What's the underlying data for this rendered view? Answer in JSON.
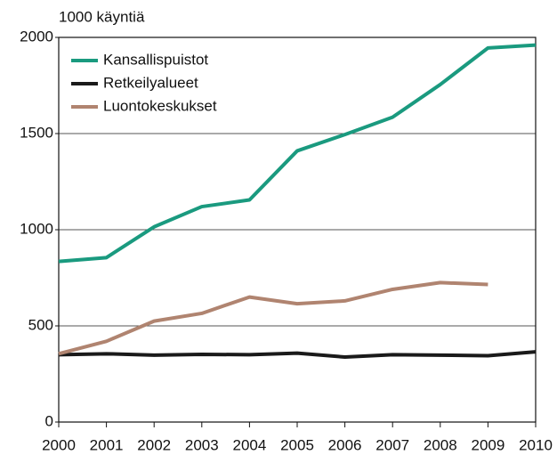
{
  "chart_data": {
    "type": "line",
    "y_label": "1000 käyntiä",
    "x": [
      2000,
      2001,
      2002,
      2003,
      2004,
      2005,
      2006,
      2007,
      2008,
      2009,
      2010
    ],
    "series": [
      {
        "name": "Kansallispuistot",
        "color": "#1a9a7f",
        "values": [
          835,
          855,
          1015,
          1120,
          1155,
          1410,
          1495,
          1585,
          1755,
          1945,
          1960
        ]
      },
      {
        "name": "Retkeilyalueet",
        "color": "#1a1a1a",
        "values": [
          350,
          355,
          348,
          352,
          350,
          358,
          338,
          350,
          348,
          345,
          365
        ]
      },
      {
        "name": "Luontokeskukset",
        "color": "#b08470",
        "values": [
          355,
          420,
          525,
          565,
          650,
          615,
          630,
          690,
          725,
          715,
          null
        ]
      }
    ],
    "xlim": [
      2000,
      2010
    ],
    "xticks": [
      2000,
      2001,
      2002,
      2003,
      2004,
      2005,
      2006,
      2007,
      2008,
      2009,
      2010
    ],
    "ylim": [
      0,
      2000
    ],
    "yticks": [
      0,
      500,
      1000,
      1500,
      2000
    ],
    "grid": true,
    "legend": "upper left"
  }
}
